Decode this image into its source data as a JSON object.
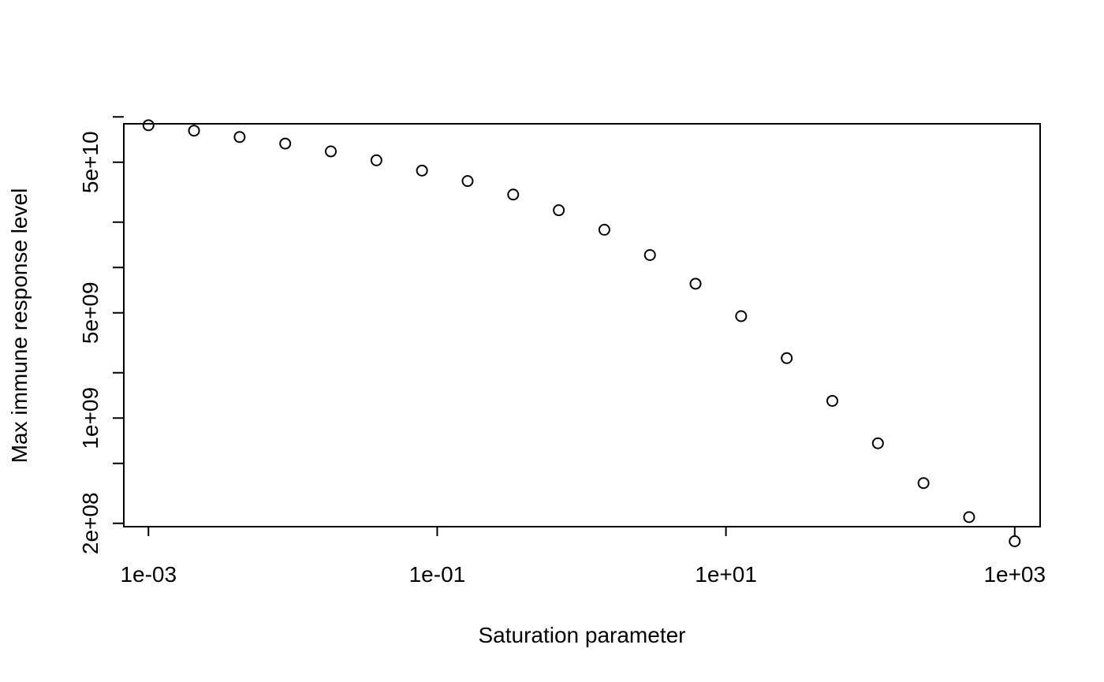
{
  "chart_data": {
    "type": "scatter",
    "title": "",
    "xlabel": "Saturation parameter",
    "ylabel": "Max immune response level",
    "x_scale": "log",
    "y_scale": "log",
    "xlim": [
      0.000675,
      1500
    ],
    "ylim": [
      190000000,
      90000000000
    ],
    "x_ticks": [
      {
        "value": 0.001,
        "label": "1e-03"
      },
      {
        "value": 0.1,
        "label": "1e-01"
      },
      {
        "value": 10,
        "label": "1e+01"
      },
      {
        "value": 1000,
        "label": "1e+03"
      }
    ],
    "y_ticks": [
      {
        "value": 200000000,
        "label": "2e+08"
      },
      {
        "value": 500000000,
        "label": ""
      },
      {
        "value": 1000000000,
        "label": "1e+09"
      },
      {
        "value": 2000000000,
        "label": ""
      },
      {
        "value": 5000000000,
        "label": "5e+09"
      },
      {
        "value": 10000000000,
        "label": ""
      },
      {
        "value": 20000000000,
        "label": ""
      },
      {
        "value": 50000000000,
        "label": "5e+10"
      },
      {
        "value": 100000000000,
        "label": ""
      }
    ],
    "grid": false,
    "marker": "open-circle",
    "marker_color": "#000000",
    "series": [
      {
        "x": [
          0.001,
          0.002069,
          0.004281,
          0.008859,
          0.01833,
          0.03793,
          0.07848,
          0.1624,
          0.336,
          0.6952,
          1.438,
          2.976,
          6.158,
          12.74,
          26.37,
          54.56,
          112.9,
          233.6,
          483.3,
          1000
        ],
        "y": [
          88000000000,
          81000000000,
          73500000000,
          66500000000,
          59000000000,
          51500000000,
          44000000000,
          37500000000,
          30500000000,
          24000000000,
          17800000000,
          12100000000,
          7800000000,
          4750000000,
          2500000000,
          1300000000,
          680000000,
          370000000,
          220000000,
          152000000
        ]
      }
    ]
  }
}
